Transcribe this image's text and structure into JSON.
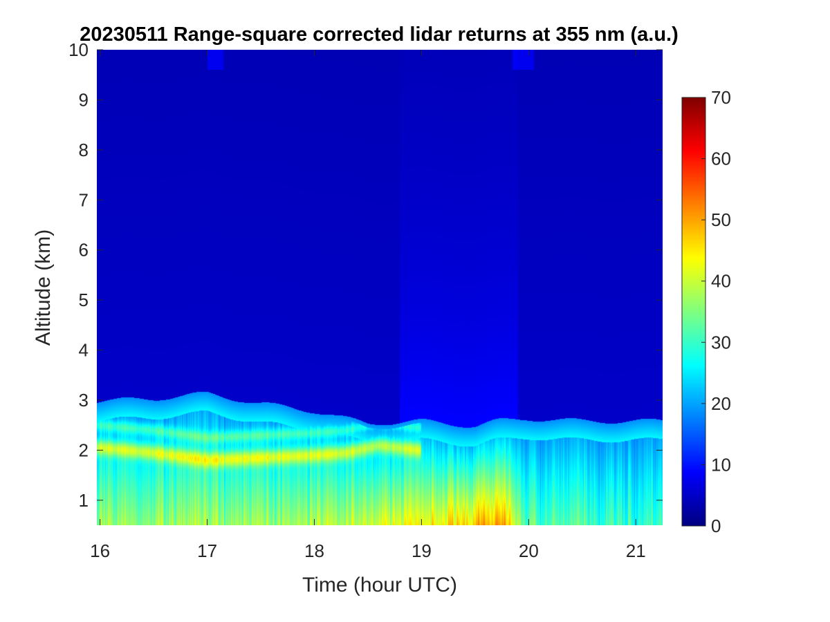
{
  "chart_data": {
    "type": "heatmap",
    "title": "20230511  Range-square corrected lidar returns at 355 nm (a.u.)",
    "xlabel": "Time (hour UTC)",
    "ylabel": "Altitude (km)",
    "xlim": [
      15.97,
      21.25
    ],
    "ylim": [
      0.5,
      10
    ],
    "x_ticks": [
      16,
      17,
      18,
      19,
      20,
      21
    ],
    "y_ticks": [
      1,
      2,
      3,
      4,
      5,
      6,
      7,
      8,
      9,
      10
    ],
    "colorbar": {
      "colormap": "jet",
      "range": [
        0,
        70
      ],
      "ticks": [
        0,
        10,
        20,
        30,
        40,
        50,
        60,
        70
      ]
    },
    "features": {
      "aerosol_layer_top_km": [
        [
          16.0,
          2.9
        ],
        [
          16.5,
          2.95
        ],
        [
          17.0,
          3.05
        ],
        [
          17.5,
          2.85
        ],
        [
          18.0,
          2.7
        ],
        [
          18.5,
          2.45
        ],
        [
          19.0,
          2.5
        ],
        [
          19.5,
          2.4
        ],
        [
          19.7,
          2.5
        ],
        [
          20.0,
          2.55
        ],
        [
          20.5,
          2.5
        ],
        [
          21.0,
          2.5
        ],
        [
          21.25,
          2.5
        ]
      ],
      "elevated_layer_km": [
        [
          16.0,
          2.05
        ],
        [
          16.5,
          1.95
        ],
        [
          17.0,
          1.8
        ],
        [
          17.5,
          1.85
        ],
        [
          18.0,
          1.9
        ],
        [
          18.3,
          1.95
        ],
        [
          18.6,
          2.1
        ],
        [
          19.0,
          2.0
        ]
      ],
      "near_surface_value": [
        [
          16.0,
          38
        ],
        [
          17.0,
          37
        ],
        [
          18.0,
          37
        ],
        [
          19.0,
          42
        ],
        [
          19.5,
          48
        ],
        [
          19.75,
          50
        ],
        [
          20.0,
          32
        ],
        [
          21.0,
          30
        ],
        [
          21.25,
          30
        ]
      ],
      "background_value": 5
    }
  }
}
